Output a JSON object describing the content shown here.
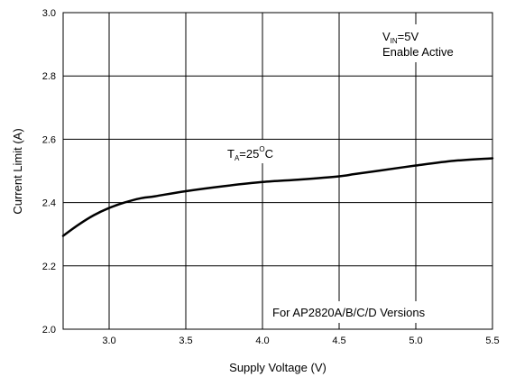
{
  "chart_data": {
    "type": "line",
    "xlabel": "Supply Voltage (V)",
    "ylabel": "Current Limit (A)",
    "xlim": [
      2.7,
      5.5
    ],
    "ylim": [
      2.0,
      3.0
    ],
    "x_ticks": [
      3.0,
      3.5,
      4.0,
      4.5,
      5.0,
      5.5
    ],
    "x_tick_labels": [
      "3.0",
      "3.5",
      "4.0",
      "4.5",
      "5.0",
      "5.5"
    ],
    "y_ticks": [
      2.0,
      2.2,
      2.4,
      2.6,
      2.8,
      3.0
    ],
    "y_tick_labels": [
      "2.0",
      "2.2",
      "2.4",
      "2.6",
      "2.8",
      "3.0"
    ],
    "grid": true,
    "series": [
      {
        "color": "#000000",
        "x": [
          2.7,
          2.8,
          2.9,
          3.0,
          3.1,
          3.2,
          3.3,
          3.5,
          3.75,
          4.0,
          4.25,
          4.5,
          4.6,
          4.75,
          5.0,
          5.25,
          5.5
        ],
        "y": [
          2.295,
          2.33,
          2.36,
          2.383,
          2.4,
          2.413,
          2.42,
          2.436,
          2.452,
          2.465,
          2.473,
          2.483,
          2.49,
          2.5,
          2.517,
          2.532,
          2.54
        ]
      }
    ],
    "annotations": {
      "ta": {
        "main": "T",
        "sub": "A",
        "rest": "=25",
        "sup": "O",
        "unit": "C"
      },
      "vin": {
        "main": "V",
        "sub": "IN",
        "rest": "=5V"
      },
      "enable": "Enable Active",
      "versions": "For AP2820A/B/C/D Versions"
    }
  }
}
